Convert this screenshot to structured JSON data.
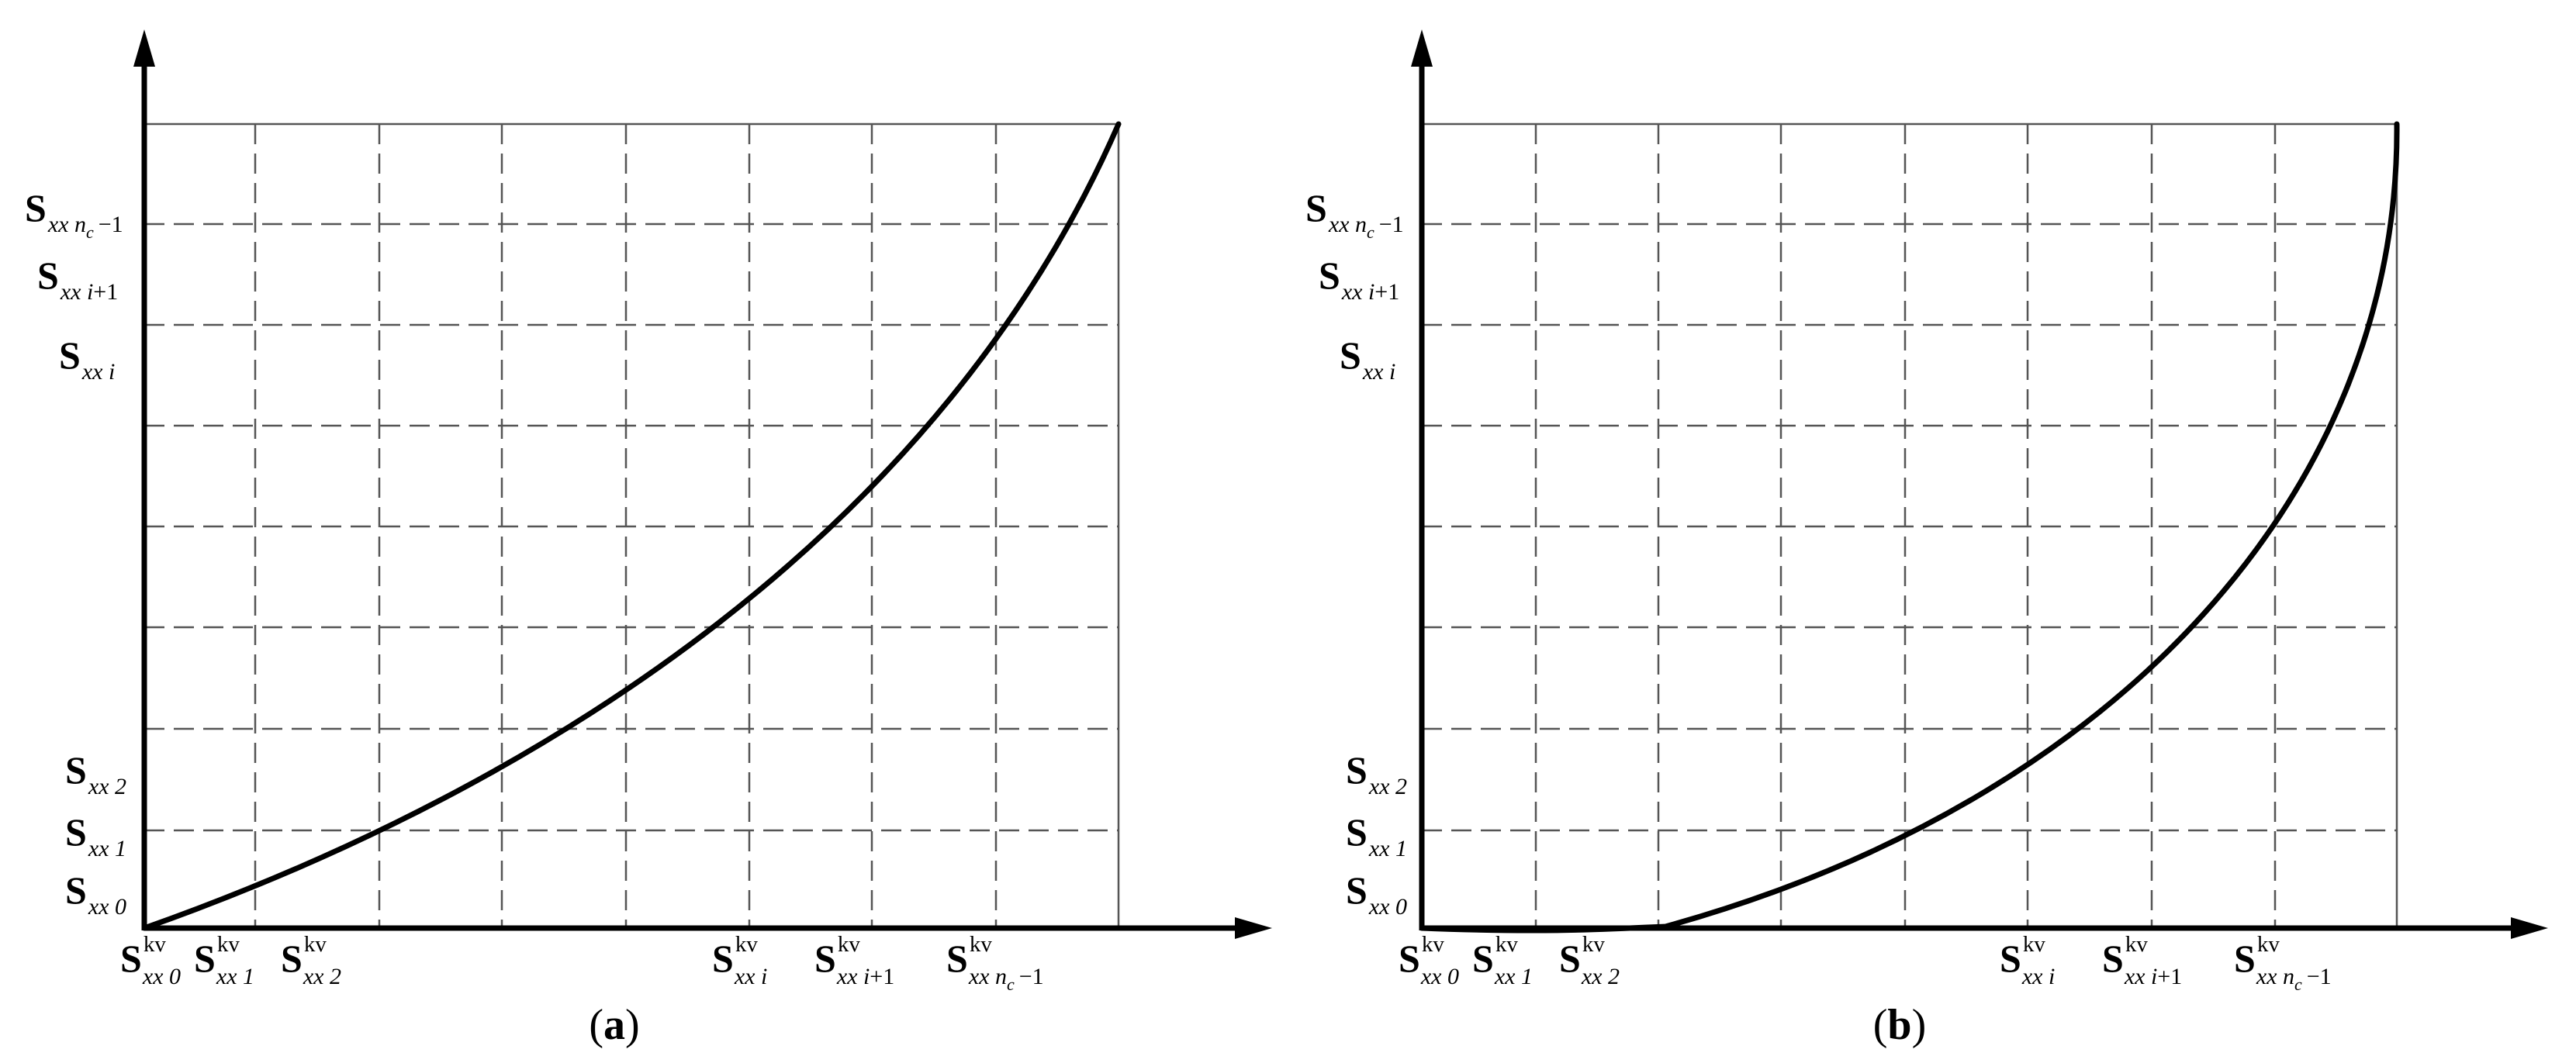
{
  "panels": [
    {
      "id": "a",
      "caption_open": "(",
      "caption_letter": "a",
      "caption_close": ")",
      "curve": "convex-increasing",
      "y_labels": [
        {
          "base": "S",
          "sub": "xx n",
          "subsub": "c",
          "tail": "−1"
        },
        {
          "base": "S",
          "sub": "xx i",
          "tail": "+1"
        },
        {
          "base": "S",
          "sub": "xx i",
          "tail": ""
        },
        {
          "base": "S",
          "sub": "xx 2",
          "tail": ""
        },
        {
          "base": "S",
          "sub": "xx 1",
          "tail": ""
        },
        {
          "base": "S",
          "sub": "xx 0",
          "tail": ""
        }
      ],
      "x_labels": [
        {
          "base": "S",
          "sup": "kv",
          "sub": "xx 0",
          "tail": ""
        },
        {
          "base": "S",
          "sup": "kv",
          "sub": "xx 1",
          "tail": ""
        },
        {
          "base": "S",
          "sup": "kv",
          "sub": "xx 2",
          "tail": ""
        },
        {
          "base": "S",
          "sup": "kv",
          "sub": "xx i",
          "tail": ""
        },
        {
          "base": "S",
          "sup": "kv",
          "sub": "xx i",
          "tail": "+1"
        },
        {
          "base": "S",
          "sup": "kv",
          "sub": "xx n",
          "subsub": "c",
          "tail": "−1"
        }
      ]
    },
    {
      "id": "b",
      "caption_open": "(",
      "caption_letter": "b",
      "caption_close": ")",
      "curve": "steep-convex-increasing",
      "y_labels": [
        {
          "base": "S",
          "sub": "xx n",
          "subsub": "c",
          "tail": "−1"
        },
        {
          "base": "S",
          "sub": "xx i",
          "tail": "+1"
        },
        {
          "base": "S",
          "sub": "xx i",
          "tail": ""
        },
        {
          "base": "S",
          "sub": "xx 2",
          "tail": ""
        },
        {
          "base": "S",
          "sub": "xx 1",
          "tail": ""
        },
        {
          "base": "S",
          "sub": "xx 0",
          "tail": ""
        }
      ],
      "x_labels": [
        {
          "base": "S",
          "sup": "kv",
          "sub": "xx 0",
          "tail": ""
        },
        {
          "base": "S",
          "sup": "kv",
          "sub": "xx 1",
          "tail": ""
        },
        {
          "base": "S",
          "sup": "kv",
          "sub": "xx 2",
          "tail": ""
        },
        {
          "base": "S",
          "sup": "kv",
          "sub": "xx i",
          "tail": ""
        },
        {
          "base": "S",
          "sup": "kv",
          "sub": "xx i",
          "tail": "+1"
        },
        {
          "base": "S",
          "sup": "kv",
          "sub": "xx n",
          "subsub": "c",
          "tail": "−1"
        }
      ]
    }
  ],
  "colors": {
    "ink": "#000000",
    "grid": "#555555",
    "background": "#ffffff"
  }
}
